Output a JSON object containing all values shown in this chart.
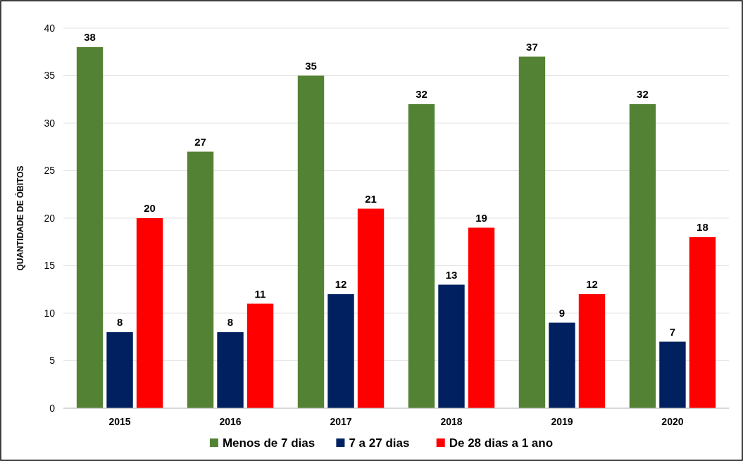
{
  "chart_data": {
    "type": "bar",
    "ylabel": "QUANTIDADE DE ÓBITOS",
    "categories": [
      "2015",
      "2016",
      "2017",
      "2018",
      "2019",
      "2020"
    ],
    "series": [
      {
        "name": "Menos de 7 dias",
        "color": "#548235",
        "values": [
          38,
          27,
          35,
          32,
          37,
          32
        ]
      },
      {
        "name": "7 a 27 dias",
        "color": "#002060",
        "values": [
          8,
          8,
          12,
          13,
          9,
          7
        ]
      },
      {
        "name": "De 28 dias a 1 ano",
        "color": "#ff0000",
        "values": [
          20,
          11,
          21,
          19,
          12,
          18
        ]
      }
    ],
    "ylim": [
      0,
      40
    ],
    "yticks": [
      0,
      5,
      10,
      15,
      20,
      25,
      30,
      35,
      40
    ],
    "grid": "y",
    "legend": "bottom",
    "data_labels": true
  }
}
